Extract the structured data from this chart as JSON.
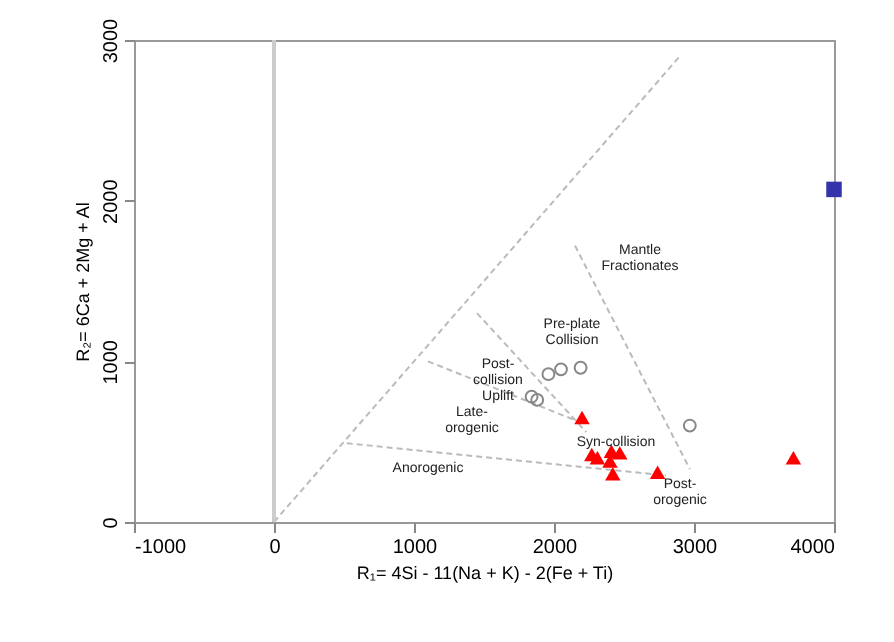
{
  "chart_data": {
    "type": "scatter",
    "xlabel": "R₁= 4Si - 11(Na + K) - 2(Fe + Ti)",
    "ylabel": "R₂= 6Ca + 2Mg + Al",
    "xlim": [
      -1000,
      4000
    ],
    "xticks": [
      -1000,
      0,
      1000,
      2000,
      3000,
      4000
    ],
    "ylim": [
      0,
      3000
    ],
    "yticks": [
      0,
      1000,
      2000,
      3000
    ],
    "grid": false,
    "series": [
      {
        "type": "line",
        "line_style": "dashed",
        "color": "#bbbbbb",
        "x": [
          0,
          2890
        ],
        "values": [
          0,
          2890
        ]
      },
      {
        "type": "line",
        "line_style": "dashed",
        "color": "#bbbbbb",
        "x": [
          2150,
          2970
        ],
        "values": [
          1720,
          330
        ]
      },
      {
        "type": "line",
        "line_style": "dashed",
        "color": "#bbbbbb",
        "x": [
          1450,
          2230
        ],
        "values": [
          1300,
          560
        ]
      },
      {
        "type": "line",
        "line_style": "dashed",
        "color": "#bbbbbb",
        "x": [
          1100,
          2190
        ],
        "values": [
          1000,
          620
        ]
      },
      {
        "type": "line",
        "line_style": "dashed",
        "color": "#bbbbbb",
        "x": [
          520,
          2800
        ],
        "values": [
          490,
          290
        ]
      },
      {
        "marker": "circle",
        "color": "#888888",
        "x": [
          1960,
          2050,
          2190,
          1840,
          1880,
          2970
        ],
        "values": [
          920,
          950,
          960,
          780,
          760,
          600
        ]
      },
      {
        "marker": "triangle",
        "color": "#ff0000",
        "x": [
          2200,
          2270,
          2310,
          2410,
          2470,
          2400,
          2420,
          2740,
          3710
        ],
        "values": [
          650,
          420,
          400,
          440,
          430,
          380,
          300,
          310,
          400
        ]
      },
      {
        "marker": "square",
        "color": "#3333aa",
        "x": [
          4000
        ],
        "values": [
          2070
        ]
      }
    ],
    "ref_lines": [
      {
        "axis": "x",
        "value": 0,
        "color": "#cccccc",
        "line_style": "solid"
      }
    ],
    "annotations": [
      "Mantle\nFractionates",
      "Pre-plate\nCollision",
      "Post-\ncollision\nUplift",
      "Late-\norogenic",
      "Syn-collision",
      "Anorogenic",
      "Post-\norogenic"
    ]
  }
}
